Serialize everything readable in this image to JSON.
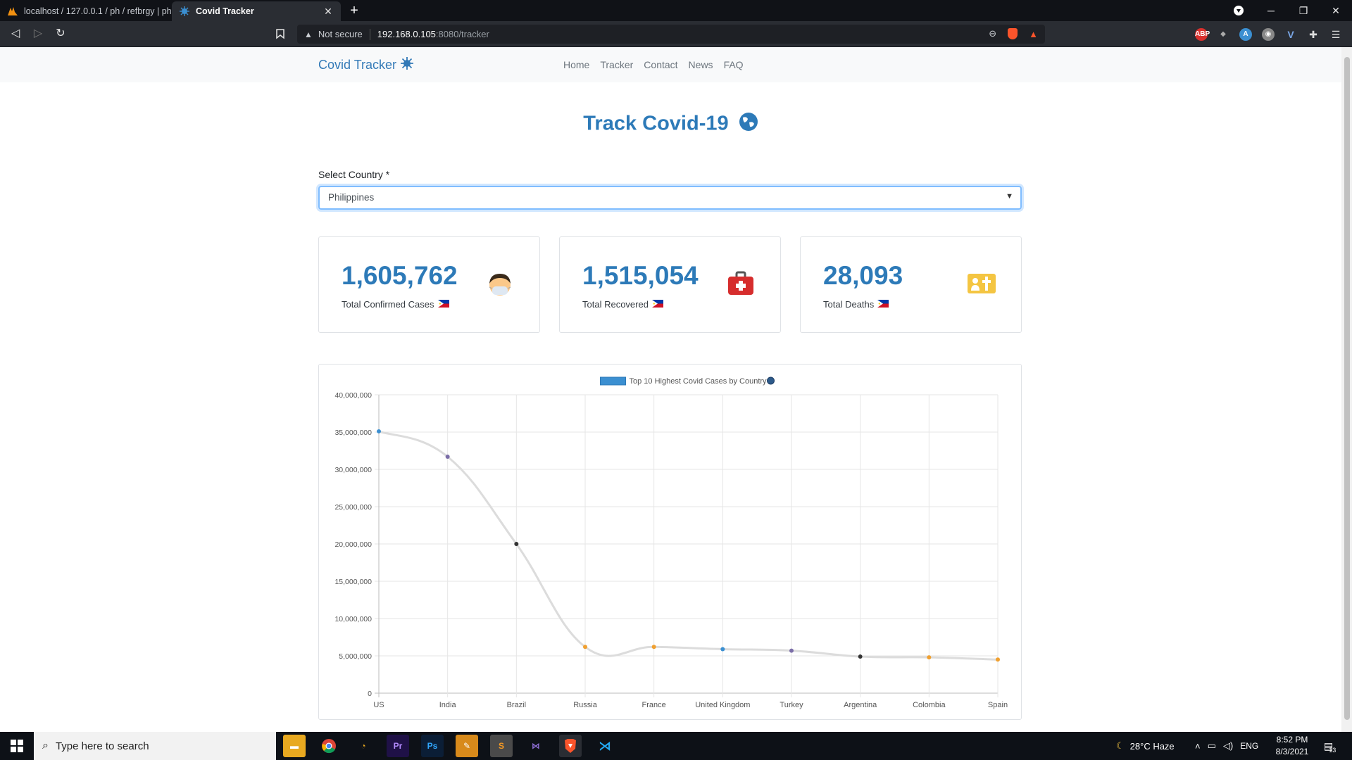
{
  "browser": {
    "tabs": [
      {
        "title": "localhost / 127.0.0.1 / ph / refbrgy | ph"
      },
      {
        "title": "Covid Tracker"
      }
    ],
    "url_warning": "Not secure",
    "url_host": "192.168.0.105",
    "url_path": ":8080/tracker"
  },
  "site": {
    "brand": "Covid Tracker",
    "nav": [
      "Home",
      "Tracker",
      "Contact",
      "News",
      "FAQ"
    ],
    "heading": "Track Covid-19"
  },
  "form": {
    "label": "Select Country *",
    "selected": "Philippines"
  },
  "cards": [
    {
      "value": "1,605,762",
      "label": "Total Confirmed Cases",
      "icon": "masked-face-icon"
    },
    {
      "value": "1,515,054",
      "label": "Total Recovered",
      "icon": "medical-kit-icon"
    },
    {
      "value": "28,093",
      "label": "Total Deaths",
      "icon": "funeral-icon"
    }
  ],
  "chart_data": {
    "type": "line",
    "title": "Top 10 Highest Covid Cases by Country",
    "categories": [
      "US",
      "India",
      "Brazil",
      "Russia",
      "France",
      "United Kingdom",
      "Turkey",
      "Argentina",
      "Colombia",
      "Spain"
    ],
    "series": [
      {
        "name": "Top 10 Highest Covid Cases by Country",
        "values": [
          35100000,
          31700000,
          20000000,
          6200000,
          6200000,
          5900000,
          5700000,
          4900000,
          4800000,
          4500000
        ]
      }
    ],
    "point_colors": [
      "#3b8fd1",
      "#7b6ea8",
      "#333333",
      "#f0a030",
      "#f0a030",
      "#3b8fd1",
      "#7b6ea8",
      "#333333",
      "#f0a030",
      "#f0a030"
    ],
    "y_ticks": [
      "0",
      "5,000,000",
      "10,000,000",
      "15,000,000",
      "20,000,000",
      "25,000,000",
      "30,000,000",
      "35,000,000",
      "40,000,000"
    ],
    "ylim": [
      0,
      40000000
    ],
    "grid": true,
    "legend": "top-center",
    "line_color": "#dcdcdc"
  },
  "taskbar": {
    "search_placeholder": "Type here to search",
    "weather": "28°C  Haze",
    "lang": "ENG",
    "time": "8:52 PM",
    "date": "8/3/2021",
    "notifications": "13"
  }
}
